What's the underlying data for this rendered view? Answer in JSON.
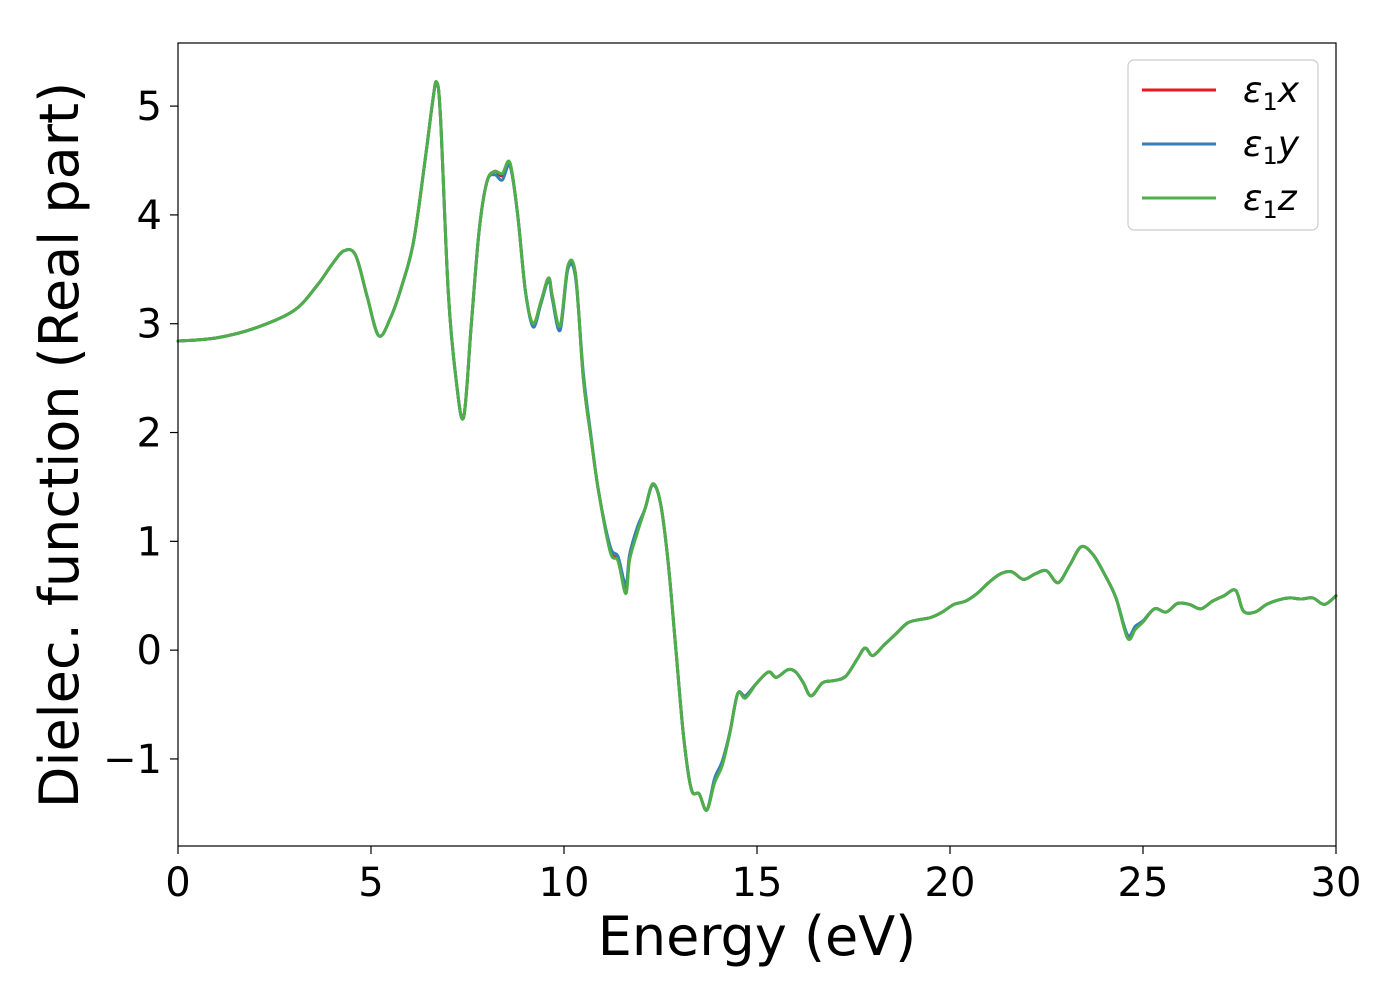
{
  "chart_data": {
    "type": "line",
    "title": "",
    "xlabel": "Energy (eV)",
    "ylabel": "Dielec. function (Real part)",
    "xlim": [
      0,
      30
    ],
    "ylim": [
      -1.8,
      5.58
    ],
    "xticks": [
      0,
      5,
      10,
      15,
      20,
      25,
      30
    ],
    "xtick_labels": [
      "0",
      "5",
      "10",
      "15",
      "20",
      "25",
      "30"
    ],
    "yticks": [
      -1,
      0,
      1,
      2,
      3,
      4,
      5
    ],
    "ytick_labels": [
      "−1",
      "0",
      "1",
      "2",
      "3",
      "4",
      "5"
    ],
    "grid": false,
    "legend_position": "top-right",
    "series": [
      {
        "name": "ε₁x",
        "label_base": "ε",
        "label_sub": "1",
        "label_var": "x",
        "color": "#e41a1c",
        "x": [
          0,
          1,
          2,
          3,
          3.6,
          4.0,
          4.3,
          4.6,
          4.9,
          5.2,
          5.5,
          5.8,
          6.1,
          6.4,
          6.6,
          6.7,
          6.8,
          7.0,
          7.2,
          7.4,
          7.6,
          7.8,
          8.0,
          8.2,
          8.4,
          8.6,
          8.8,
          9.0,
          9.2,
          9.4,
          9.6,
          9.7,
          9.9,
          10.1,
          10.3,
          10.5,
          10.7,
          10.9,
          11.2,
          11.4,
          11.6,
          11.7,
          11.9,
          12.1,
          12.3,
          12.5,
          12.7,
          12.9,
          13.1,
          13.3,
          13.5,
          13.7,
          13.9,
          14.1,
          14.3,
          14.5,
          14.7,
          15.0,
          15.3,
          15.5,
          15.8,
          16.0,
          16.2,
          16.4,
          16.7,
          17.0,
          17.3,
          17.6,
          17.8,
          18.0,
          18.3,
          18.6,
          18.9,
          19.2,
          19.5,
          19.8,
          20.1,
          20.4,
          20.7,
          21.0,
          21.3,
          21.6,
          21.9,
          22.2,
          22.5,
          22.8,
          23.1,
          23.4,
          23.7,
          24.0,
          24.3,
          24.6,
          24.8,
          25.0,
          25.3,
          25.6,
          25.9,
          26.2,
          26.5,
          26.8,
          27.1,
          27.4,
          27.6,
          27.9,
          28.2,
          28.5,
          28.8,
          29.1,
          29.4,
          29.7,
          30.0
        ],
        "y": [
          2.84,
          2.87,
          2.96,
          3.12,
          3.35,
          3.55,
          3.67,
          3.63,
          3.25,
          2.89,
          3.05,
          3.35,
          3.75,
          4.5,
          5.05,
          5.22,
          4.9,
          3.3,
          2.5,
          2.14,
          3.0,
          3.85,
          4.3,
          4.4,
          4.36,
          4.47,
          4.0,
          3.3,
          3.0,
          3.2,
          3.42,
          3.25,
          2.97,
          3.52,
          3.45,
          2.5,
          1.95,
          1.45,
          0.92,
          0.83,
          0.55,
          0.85,
          1.1,
          1.3,
          1.52,
          1.35,
          0.8,
          0.0,
          -0.8,
          -1.28,
          -1.32,
          -1.47,
          -1.2,
          -1.05,
          -0.75,
          -0.4,
          -0.42,
          -0.3,
          -0.2,
          -0.25,
          -0.18,
          -0.2,
          -0.3,
          -0.42,
          -0.3,
          -0.28,
          -0.24,
          -0.08,
          0.02,
          -0.05,
          0.05,
          0.15,
          0.25,
          0.28,
          0.3,
          0.35,
          0.42,
          0.45,
          0.52,
          0.62,
          0.7,
          0.72,
          0.65,
          0.7,
          0.73,
          0.62,
          0.78,
          0.95,
          0.88,
          0.7,
          0.48,
          0.12,
          0.2,
          0.26,
          0.38,
          0.35,
          0.43,
          0.42,
          0.38,
          0.45,
          0.5,
          0.55,
          0.36,
          0.35,
          0.42,
          0.46,
          0.48,
          0.47,
          0.48,
          0.42,
          0.5
        ]
      },
      {
        "name": "ε₁y",
        "label_base": "ε",
        "label_sub": "1",
        "label_var": "y",
        "color": "#377eb8",
        "x": [
          0,
          1,
          2,
          3,
          3.6,
          4.0,
          4.3,
          4.6,
          4.9,
          5.2,
          5.5,
          5.8,
          6.1,
          6.4,
          6.6,
          6.7,
          6.8,
          7.0,
          7.2,
          7.4,
          7.6,
          7.8,
          8.0,
          8.2,
          8.4,
          8.6,
          8.8,
          9.0,
          9.2,
          9.4,
          9.6,
          9.7,
          9.9,
          10.1,
          10.3,
          10.5,
          10.7,
          10.9,
          11.2,
          11.4,
          11.6,
          11.7,
          11.9,
          12.1,
          12.3,
          12.5,
          12.7,
          12.9,
          13.1,
          13.3,
          13.5,
          13.7,
          13.9,
          14.1,
          14.3,
          14.5,
          14.7,
          15.0,
          15.3,
          15.5,
          15.8,
          16.0,
          16.2,
          16.4,
          16.7,
          17.0,
          17.3,
          17.6,
          17.8,
          18.0,
          18.3,
          18.6,
          18.9,
          19.2,
          19.5,
          19.8,
          20.1,
          20.4,
          20.7,
          21.0,
          21.3,
          21.6,
          21.9,
          22.2,
          22.5,
          22.8,
          23.1,
          23.4,
          23.7,
          24.0,
          24.3,
          24.6,
          24.8,
          25.0,
          25.3,
          25.6,
          25.9,
          26.2,
          26.5,
          26.8,
          27.1,
          27.4,
          27.6,
          27.9,
          28.2,
          28.5,
          28.8,
          29.1,
          29.4,
          29.7,
          30.0
        ],
        "y": [
          2.84,
          2.87,
          2.96,
          3.12,
          3.35,
          3.55,
          3.67,
          3.63,
          3.25,
          2.89,
          3.05,
          3.35,
          3.75,
          4.5,
          5.05,
          5.22,
          4.9,
          3.3,
          2.5,
          2.14,
          3.0,
          3.85,
          4.3,
          4.37,
          4.32,
          4.45,
          4.0,
          3.3,
          2.97,
          3.18,
          3.4,
          3.22,
          2.94,
          3.5,
          3.42,
          2.55,
          1.97,
          1.45,
          0.95,
          0.86,
          0.6,
          0.88,
          1.13,
          1.3,
          1.52,
          1.35,
          0.8,
          0.0,
          -0.8,
          -1.28,
          -1.32,
          -1.47,
          -1.18,
          -1.02,
          -0.75,
          -0.4,
          -0.42,
          -0.3,
          -0.2,
          -0.25,
          -0.18,
          -0.2,
          -0.3,
          -0.42,
          -0.3,
          -0.28,
          -0.24,
          -0.08,
          0.02,
          -0.05,
          0.05,
          0.15,
          0.25,
          0.28,
          0.3,
          0.35,
          0.42,
          0.45,
          0.52,
          0.62,
          0.7,
          0.72,
          0.65,
          0.7,
          0.73,
          0.62,
          0.78,
          0.95,
          0.88,
          0.7,
          0.48,
          0.14,
          0.22,
          0.27,
          0.38,
          0.35,
          0.43,
          0.42,
          0.38,
          0.45,
          0.5,
          0.55,
          0.36,
          0.35,
          0.42,
          0.46,
          0.48,
          0.47,
          0.48,
          0.42,
          0.5
        ]
      },
      {
        "name": "ε₁z",
        "label_base": "ε",
        "label_sub": "1",
        "label_var": "z",
        "color": "#4daf4a",
        "x": [
          0,
          1,
          2,
          3,
          3.6,
          4.0,
          4.3,
          4.6,
          4.9,
          5.2,
          5.5,
          5.8,
          6.1,
          6.4,
          6.6,
          6.7,
          6.8,
          7.0,
          7.2,
          7.4,
          7.6,
          7.8,
          8.0,
          8.2,
          8.4,
          8.6,
          8.8,
          9.0,
          9.2,
          9.4,
          9.6,
          9.7,
          9.9,
          10.1,
          10.3,
          10.5,
          10.7,
          10.9,
          11.2,
          11.4,
          11.6,
          11.7,
          11.9,
          12.1,
          12.3,
          12.5,
          12.7,
          12.9,
          13.1,
          13.3,
          13.5,
          13.7,
          13.9,
          14.1,
          14.3,
          14.5,
          14.7,
          15.0,
          15.3,
          15.5,
          15.8,
          16.0,
          16.2,
          16.4,
          16.7,
          17.0,
          17.3,
          17.6,
          17.8,
          18.0,
          18.3,
          18.6,
          18.9,
          19.2,
          19.5,
          19.8,
          20.1,
          20.4,
          20.7,
          21.0,
          21.3,
          21.6,
          21.9,
          22.2,
          22.5,
          22.8,
          23.1,
          23.4,
          23.7,
          24.0,
          24.3,
          24.6,
          24.8,
          25.0,
          25.3,
          25.6,
          25.9,
          26.2,
          26.5,
          26.8,
          27.1,
          27.4,
          27.6,
          27.9,
          28.2,
          28.5,
          28.8,
          29.1,
          29.4,
          29.7,
          30.0
        ],
        "y": [
          2.84,
          2.87,
          2.96,
          3.12,
          3.35,
          3.55,
          3.67,
          3.63,
          3.25,
          2.89,
          3.05,
          3.35,
          3.75,
          4.5,
          5.05,
          5.22,
          4.9,
          3.3,
          2.5,
          2.14,
          3.0,
          3.85,
          4.3,
          4.4,
          4.38,
          4.48,
          4.0,
          3.3,
          3.0,
          3.2,
          3.42,
          3.25,
          2.98,
          3.53,
          3.45,
          2.5,
          1.95,
          1.45,
          0.9,
          0.82,
          0.52,
          0.83,
          1.08,
          1.3,
          1.53,
          1.35,
          0.8,
          0.0,
          -0.8,
          -1.28,
          -1.32,
          -1.47,
          -1.22,
          -1.06,
          -0.76,
          -0.4,
          -0.44,
          -0.3,
          -0.2,
          -0.25,
          -0.18,
          -0.2,
          -0.3,
          -0.42,
          -0.3,
          -0.28,
          -0.24,
          -0.08,
          0.02,
          -0.05,
          0.05,
          0.15,
          0.25,
          0.28,
          0.3,
          0.35,
          0.42,
          0.45,
          0.52,
          0.62,
          0.7,
          0.72,
          0.65,
          0.7,
          0.73,
          0.62,
          0.78,
          0.95,
          0.88,
          0.7,
          0.48,
          0.11,
          0.19,
          0.26,
          0.38,
          0.35,
          0.43,
          0.42,
          0.38,
          0.45,
          0.5,
          0.55,
          0.36,
          0.35,
          0.42,
          0.46,
          0.48,
          0.47,
          0.48,
          0.42,
          0.5
        ]
      }
    ]
  }
}
